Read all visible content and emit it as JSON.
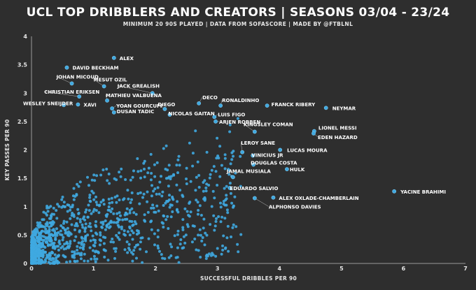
{
  "chart_data": {
    "type": "scatter",
    "title": "UCL TOP DRIBBLERS AND CREATORS | SEASONS 03/04 - 23/24",
    "subtitle": "MINIMUM 20 90S PLAYED | DATA FROM SOFASCORE | MADE BY @FTBLNL",
    "xlabel": "SUCCESSFUL DRIBBLES PER 90",
    "ylabel": "KEY PASSES PER 90",
    "xlim": [
      0,
      7
    ],
    "ylim": [
      0,
      4
    ],
    "xticks": [
      "0",
      "1",
      "2",
      "3",
      "4",
      "5",
      "6",
      "7"
    ],
    "yticks": [
      "0",
      "0.5",
      "1",
      "1.5",
      "2",
      "2.5",
      "3",
      "3.5",
      "4"
    ],
    "grid": false,
    "point_color": "#3fa9e0",
    "highlighted": [
      {
        "name": "ALEX",
        "x": 1.33,
        "y": 3.62
      },
      {
        "name": "DAVID BECKHAM",
        "x": 0.57,
        "y": 3.45
      },
      {
        "name": "JOHAN MICOUD",
        "x": 0.65,
        "y": 3.17
      },
      {
        "name": "MESUT OZIL",
        "x": 1.17,
        "y": 3.12
      },
      {
        "name": "JACK GREALISH",
        "x": 1.95,
        "y": 3.0
      },
      {
        "name": "CHRISTIAN ERIKSEN",
        "x": 0.77,
        "y": 2.94
      },
      {
        "name": "MATHIEU VALBUENA",
        "x": 1.22,
        "y": 2.87
      },
      {
        "name": "WESLEY SNEIJDER",
        "x": 0.52,
        "y": 2.79
      },
      {
        "name": "XAVI",
        "x": 0.75,
        "y": 2.8
      },
      {
        "name": "YOAN GOURCUFF",
        "x": 1.3,
        "y": 2.73
      },
      {
        "name": "DUSAN TADIC",
        "x": 1.33,
        "y": 2.66
      },
      {
        "name": "DIEGO",
        "x": 2.15,
        "y": 2.72
      },
      {
        "name": "NICOLAS GAITAN",
        "x": 2.23,
        "y": 2.62
      },
      {
        "name": "DECO",
        "x": 2.7,
        "y": 2.82
      },
      {
        "name": "RONALDINHO",
        "x": 3.05,
        "y": 2.78
      },
      {
        "name": "FRANCK RIBERY",
        "x": 3.8,
        "y": 2.78
      },
      {
        "name": "NEYMAR",
        "x": 4.75,
        "y": 2.74
      },
      {
        "name": "LUIS FIGO",
        "x": 2.95,
        "y": 2.58
      },
      {
        "name": "ARJEN ROBBEN",
        "x": 2.97,
        "y": 2.5
      },
      {
        "name": "KINGSLEY COMAN",
        "x": 3.6,
        "y": 2.32
      },
      {
        "name": "LIONEL MESSI",
        "x": 4.56,
        "y": 2.33
      },
      {
        "name": "EDEN HAZARD",
        "x": 4.55,
        "y": 2.29
      },
      {
        "name": "LEROY SANE",
        "x": 3.4,
        "y": 1.96
      },
      {
        "name": "LUCAS MOURA",
        "x": 4.01,
        "y": 2.0
      },
      {
        "name": "VINICIUS JR",
        "x": 3.57,
        "y": 1.9
      },
      {
        "name": "DOUGLAS COSTA",
        "x": 3.58,
        "y": 1.74
      },
      {
        "name": "HULK",
        "x": 4.12,
        "y": 1.66
      },
      {
        "name": "JAMAL MUSIALA",
        "x": 3.25,
        "y": 1.52
      },
      {
        "name": "EDUARDO SALVIO",
        "x": 3.2,
        "y": 1.33
      },
      {
        "name": "ALEX OXLADE-CHAMBERLAIN",
        "x": 3.9,
        "y": 1.16
      },
      {
        "name": "ALPHONSO DAVIES",
        "x": 3.6,
        "y": 1.15
      },
      {
        "name": "YACINE BRAHIMI",
        "x": 5.85,
        "y": 1.27
      }
    ]
  }
}
